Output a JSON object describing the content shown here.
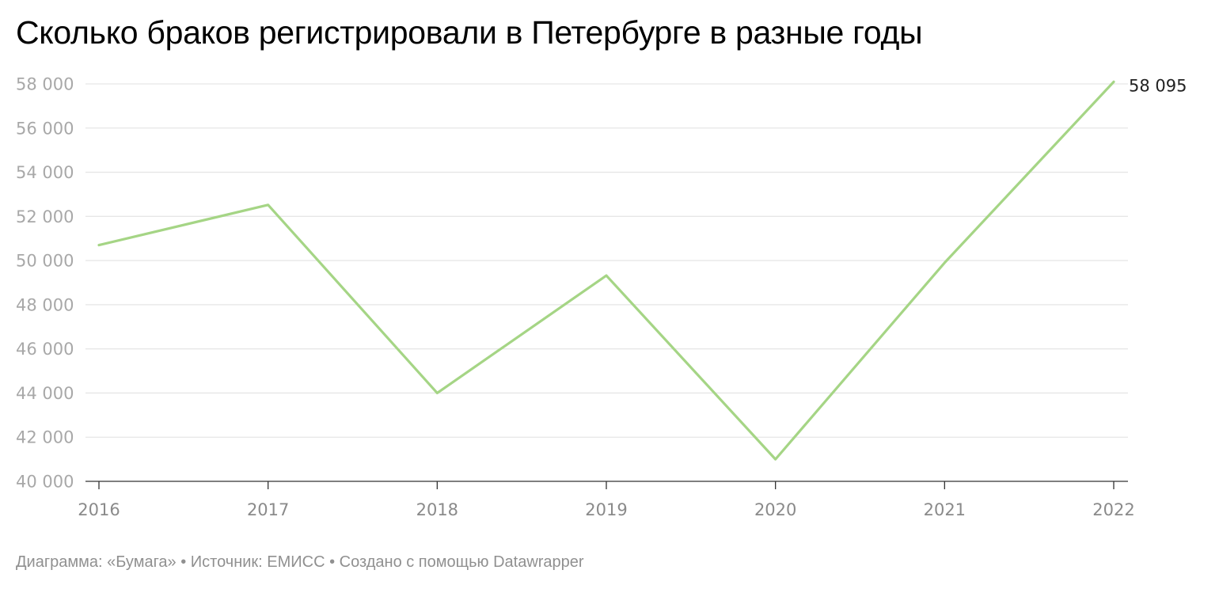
{
  "title": "Сколько браков регистрировали в Петербурге в разные годы",
  "footer": "Диаграмма: «Бумага» • Источник: ЕМИСС • Создано с помощью Datawrapper",
  "colors": {
    "line": "#a5d585",
    "grid": "#e6e6e6",
    "axis": "#333333"
  },
  "chart_data": {
    "type": "line",
    "x": [
      "2016",
      "2017",
      "2018",
      "2019",
      "2020",
      "2021",
      "2022"
    ],
    "series": [
      {
        "values": [
          50700,
          52520,
          44000,
          49320,
          41000,
          49900,
          58095
        ]
      }
    ],
    "ylim": [
      40000,
      58000
    ],
    "yticks": [
      40000,
      42000,
      44000,
      46000,
      48000,
      50000,
      52000,
      54000,
      56000,
      58000
    ],
    "ytick_labels": [
      "40 000",
      "42 000",
      "44 000",
      "46 000",
      "48 000",
      "50 000",
      "52 000",
      "54 000",
      "56 000",
      "58 000"
    ],
    "last_value_label": "58 095",
    "grid": true
  }
}
